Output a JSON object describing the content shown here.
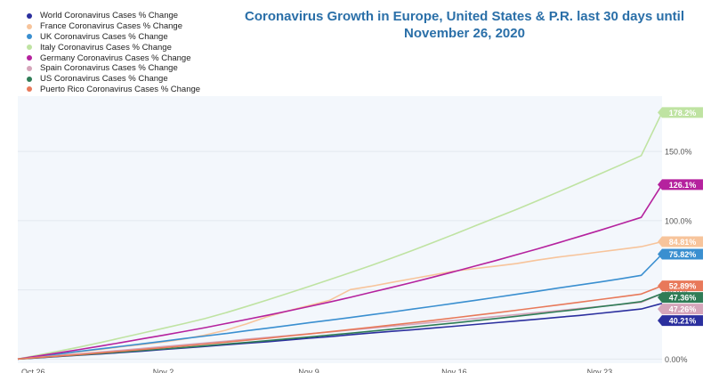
{
  "chart_data": {
    "type": "line",
    "title": "Coronavirus Growth in Europe, United States & P.R. last 30 days until November 26, 2020",
    "xlabel": "",
    "ylabel": "",
    "x_ticks": [
      "Oct 26",
      "Nov 2",
      "Nov 9",
      "Nov 16",
      "Nov 23"
    ],
    "x": [
      0,
      1,
      2,
      3,
      4,
      5,
      6,
      7,
      8,
      9,
      10,
      11,
      12,
      13,
      14,
      15,
      16,
      17,
      18,
      19,
      20,
      21,
      22,
      23,
      24,
      25,
      26,
      27,
      28,
      29,
      30,
      31
    ],
    "y_ticks": [
      "0.00%",
      "50.0%",
      "100.0%",
      "150.0%"
    ],
    "y_tick_values": [
      0,
      50,
      100,
      150
    ],
    "ylim": [
      -3,
      190
    ],
    "grid": "horizontal",
    "legend_position": "top-left",
    "series": [
      {
        "name": "World Coronavirus Cases % Change",
        "color": "#2b2f9e",
        "end_label": "40.21%",
        "values": [
          0,
          0.9,
          1.8,
          2.8,
          3.7,
          4.7,
          5.7,
          6.9,
          8.0,
          9.1,
          10.3,
          11.4,
          12.5,
          13.8,
          15.0,
          16.2,
          17.5,
          18.8,
          20.0,
          21.2,
          22.5,
          23.7,
          25.0,
          26.3,
          27.5,
          28.8,
          30.2,
          31.5,
          33.0,
          34.6,
          36.2,
          40.21
        ]
      },
      {
        "name": "France Coronavirus Cases % Change",
        "color": "#f7c49b",
        "end_label": "84.81%",
        "values": [
          0,
          1.7,
          3.5,
          5.3,
          7.0,
          8.9,
          10.5,
          12.3,
          14.5,
          17.3,
          20.8,
          25.4,
          30.6,
          34.8,
          38.6,
          42.4,
          50.2,
          52.6,
          55.4,
          58.1,
          60.8,
          63.6,
          65.4,
          67.2,
          69.0,
          71.5,
          73.7,
          75.5,
          77.4,
          79.3,
          81.2,
          84.81
        ]
      },
      {
        "name": "UK Coronavirus Cases % Change",
        "color": "#3a8fd0",
        "end_label": "75.82%",
        "values": [
          0,
          1.8,
          3.7,
          5.6,
          7.4,
          9.2,
          11.0,
          12.9,
          14.8,
          16.6,
          18.4,
          20.4,
          22.3,
          24.2,
          26.2,
          28.1,
          30.0,
          32.0,
          34.0,
          36.1,
          38.2,
          40.3,
          42.4,
          44.6,
          46.8,
          49.0,
          51.3,
          53.5,
          55.7,
          58.0,
          60.5,
          75.82
        ]
      },
      {
        "name": "Italy Coronavirus Cases % Change",
        "color": "#bfe3a2",
        "end_label": "178.2%",
        "values": [
          0,
          2.9,
          5.8,
          8.8,
          12.0,
          15.4,
          18.8,
          22.2,
          25.6,
          29.2,
          33.4,
          38.0,
          42.7,
          47.5,
          52.4,
          57.4,
          62.4,
          67.6,
          73.0,
          78.5,
          84.3,
          90.2,
          96.2,
          102.2,
          108.2,
          114.4,
          120.7,
          127.2,
          133.7,
          140.3,
          147.0,
          178.2
        ]
      },
      {
        "name": "Germany Coronavirus Cases % Change",
        "color": "#b5229e",
        "end_label": "126.1%",
        "values": [
          0,
          2.3,
          4.6,
          7.0,
          9.4,
          12.0,
          14.6,
          17.2,
          19.9,
          22.7,
          25.6,
          28.6,
          31.6,
          34.7,
          37.9,
          41.2,
          44.6,
          48.2,
          51.8,
          55.5,
          59.3,
          63.2,
          67.2,
          71.2,
          75.4,
          79.6,
          84.0,
          88.5,
          93.0,
          97.7,
          102.4,
          126.1
        ]
      },
      {
        "name": "Spain Coronavirus Cases % Change",
        "color": "#d5a5ba",
        "end_label": "47.26%",
        "values": [
          0,
          1.3,
          2.6,
          3.8,
          5.1,
          6.4,
          7.7,
          9.0,
          10.3,
          11.6,
          12.9,
          14.3,
          15.6,
          16.9,
          18.3,
          19.6,
          21.0,
          22.3,
          23.7,
          25.1,
          26.5,
          27.9,
          29.3,
          30.7,
          32.1,
          33.6,
          35.0,
          36.5,
          38.0,
          39.5,
          41.0,
          47.26
        ]
      },
      {
        "name": "US Coronavirus Cases % Change",
        "color": "#2f7c56",
        "end_label": "47.36%",
        "values": [
          0,
          1.0,
          2.0,
          3.0,
          4.0,
          5.1,
          6.2,
          7.3,
          8.4,
          9.6,
          10.8,
          12.0,
          13.3,
          14.6,
          15.9,
          17.3,
          18.7,
          20.1,
          21.6,
          23.1,
          24.6,
          26.1,
          27.7,
          29.3,
          30.9,
          32.6,
          34.3,
          36.0,
          37.8,
          39.6,
          41.5,
          47.36
        ]
      },
      {
        "name": "Puerto Rico Coronavirus Cases % Change",
        "color": "#e8795a",
        "end_label": "52.89%",
        "values": [
          0,
          1.1,
          2.2,
          3.3,
          4.5,
          5.7,
          6.9,
          8.2,
          9.5,
          10.8,
          12.2,
          13.6,
          15.1,
          16.6,
          18.1,
          19.7,
          21.3,
          22.9,
          24.6,
          26.3,
          28.0,
          29.8,
          31.6,
          33.4,
          35.3,
          37.2,
          39.1,
          41.0,
          43.0,
          45.0,
          47.0,
          52.89
        ]
      }
    ]
  }
}
